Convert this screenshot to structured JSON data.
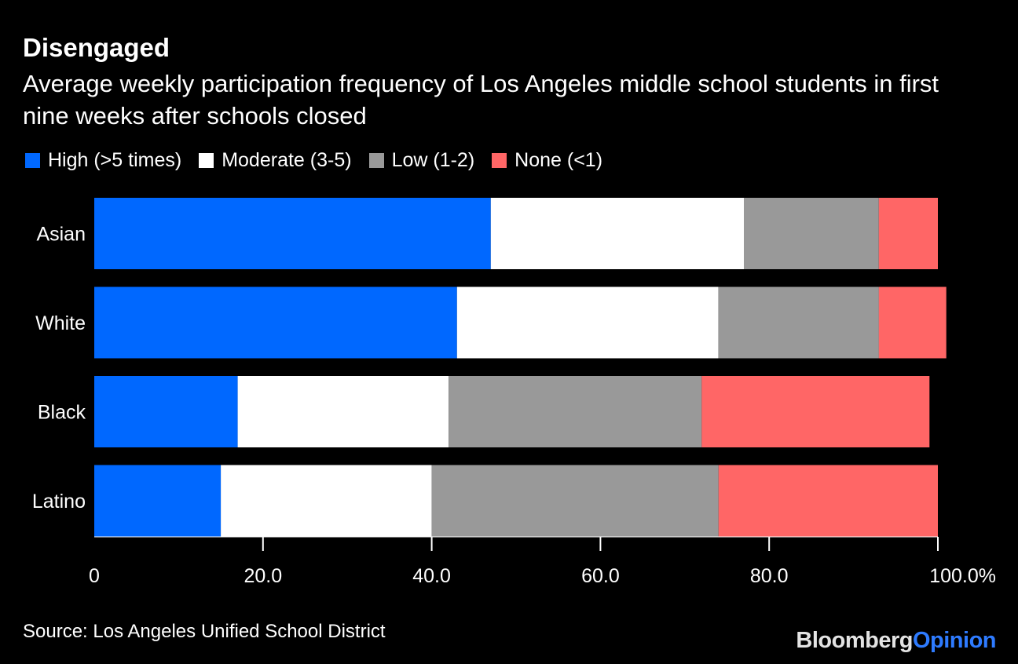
{
  "title": "Disengaged",
  "subtitle": "Average weekly participation frequency of Los Angeles middle school students in first nine weeks after schools closed",
  "legend": [
    {
      "label": "High (>5 times)",
      "color": "#0068ff"
    },
    {
      "label": "Moderate (3-5)",
      "color": "#ffffff"
    },
    {
      "label": "Low (1-2)",
      "color": "#999999"
    },
    {
      "label": "None (<1)",
      "color": "#ff6666"
    }
  ],
  "source": "Source: Los Angeles Unified School District",
  "brand": {
    "part1": "Bloomberg",
    "part2": "Opinion"
  },
  "chart_data": {
    "type": "bar",
    "orientation": "horizontal",
    "stacked": true,
    "categories": [
      "Asian",
      "White",
      "Black",
      "Latino"
    ],
    "series": [
      {
        "name": "High (>5 times)",
        "color": "#0068ff",
        "values": [
          47,
          43,
          17,
          15
        ]
      },
      {
        "name": "Moderate (3-5)",
        "color": "#ffffff",
        "values": [
          30,
          31,
          25,
          25
        ]
      },
      {
        "name": "Low (1-2)",
        "color": "#999999",
        "values": [
          16,
          19,
          30,
          34
        ]
      },
      {
        "name": "None (<1)",
        "color": "#ff6666",
        "values": [
          7,
          8,
          27,
          26
        ]
      }
    ],
    "xlim": [
      0,
      100
    ],
    "xticks": [
      {
        "value": 0,
        "label": "0"
      },
      {
        "value": 20,
        "label": "20.0"
      },
      {
        "value": 40,
        "label": "40.0"
      },
      {
        "value": 60,
        "label": "60.0"
      },
      {
        "value": 80,
        "label": "80.0"
      },
      {
        "value": 100,
        "label": "100.0%"
      }
    ],
    "grid": false,
    "legend_position": "top-left"
  }
}
